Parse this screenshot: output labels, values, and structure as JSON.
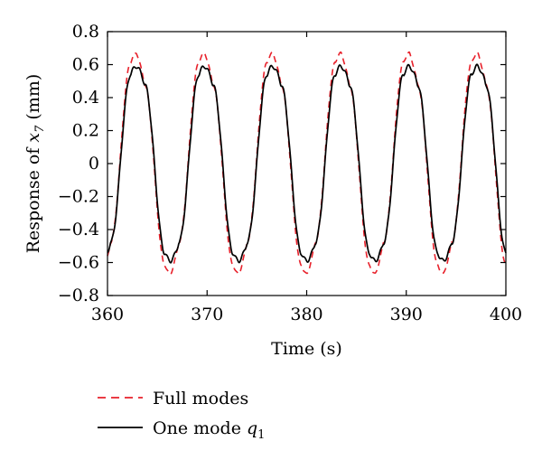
{
  "chart_data": {
    "type": "line",
    "xlabel": "Time (s)",
    "ylabel_prefix": "Response of ",
    "ylabel_var": "x",
    "ylabel_sub": "7",
    "ylabel_suffix": " (mm)",
    "xlim": [
      360,
      400
    ],
    "ylim": [
      -0.8,
      0.8
    ],
    "xticks": [
      "360",
      "370",
      "380",
      "390",
      "400"
    ],
    "yticks": [
      "0.8",
      "0.6",
      "0.4",
      "0.2",
      "0",
      "−0.2",
      "−0.4",
      "−0.6",
      "−0.8"
    ],
    "xtick_values": [
      360,
      370,
      380,
      390,
      400
    ],
    "ytick_values": [
      0.8,
      0.6,
      0.4,
      0.2,
      0,
      -0.2,
      -0.4,
      -0.6,
      -0.8
    ],
    "period": 6.85,
    "first_peak_time": 362.9,
    "series": [
      {
        "name": "Full modes",
        "legend_prefix": "Full modes",
        "legend_var": "",
        "legend_sub": "",
        "color": "#e8212b",
        "dash": "dashed",
        "peak": 0.67,
        "trough": -0.67
      },
      {
        "name": "One mode q1",
        "legend_prefix": "One mode ",
        "legend_var": "q",
        "legend_sub": "1",
        "color": "#000000",
        "dash": "solid",
        "peak": 0.59,
        "trough": -0.59
      }
    ]
  }
}
